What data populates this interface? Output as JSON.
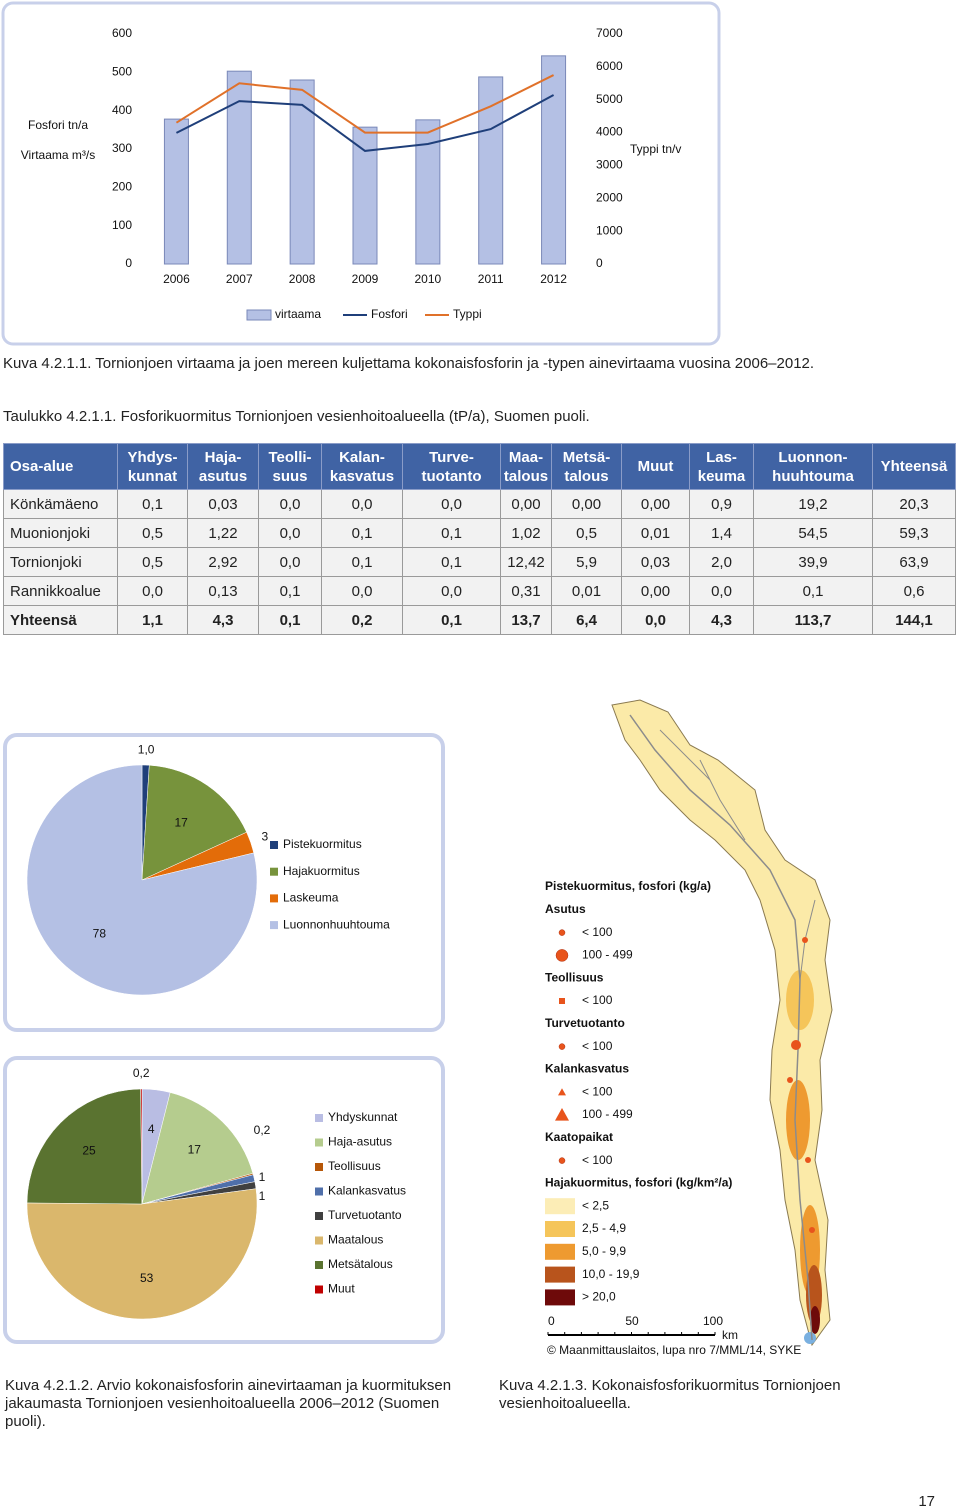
{
  "chart_data": [
    {
      "type": "bar",
      "categories": [
        "2006",
        "2007",
        "2008",
        "2009",
        "2010",
        "2011",
        "2012"
      ],
      "ylabels": [
        "Fosfori tn/a",
        "Virtaama m³/s"
      ],
      "y2label": "Typpi tn/v",
      "ylim": [
        0,
        600
      ],
      "yticks": [
        0,
        100,
        200,
        300,
        400,
        500,
        600
      ],
      "y2lim": [
        0,
        7000
      ],
      "y2ticks": [
        0,
        1000,
        2000,
        3000,
        4000,
        5000,
        6000,
        7000
      ],
      "series": [
        {
          "name": "virtaama",
          "type": "bar",
          "color": "#b4c0e4",
          "values": [
            378,
            503,
            480,
            357,
            376,
            488,
            543
          ]
        },
        {
          "name": "Fosfori",
          "type": "line",
          "color": "#1f3f7a",
          "values": [
            342,
            425,
            415,
            295,
            313,
            352,
            441
          ]
        },
        {
          "name": "Typpi",
          "type": "line",
          "axis": "y2",
          "color": "#e0712a",
          "values": [
            4300,
            5500,
            5300,
            4000,
            4000,
            4800,
            5750
          ]
        }
      ]
    },
    {
      "type": "pie",
      "categories": [
        "Pistekuormitus",
        "Hajakuormitus",
        "Laskeuma",
        "Luonnonhuuhtouma"
      ],
      "values": [
        1.0,
        17,
        3,
        78
      ],
      "value_labels": [
        "1,0",
        "17",
        "3",
        "78"
      ],
      "colors": [
        "#1f3f7a",
        "#77933c",
        "#e36c09",
        "#b4c0e4"
      ]
    },
    {
      "type": "pie",
      "categories": [
        "Yhdyskunnat",
        "Haja-asutus",
        "Teollisuus",
        "Kalankasvatus",
        "Turvetuotanto",
        "Maatalous",
        "Metsätalous",
        "Muut"
      ],
      "values": [
        4,
        17,
        0.2,
        1,
        1,
        53,
        25,
        0.2
      ],
      "value_labels": [
        "4",
        "17",
        "0,2",
        "1",
        "1",
        "53",
        "25",
        "0,2"
      ],
      "colors": [
        "#b9bde3",
        "#b5cc8e",
        "#b65708",
        "#4f6faa",
        "#404040",
        "#dab76c",
        "#5a7330",
        "#c00000"
      ]
    }
  ],
  "captions": {
    "figure1": "Kuva 4.2.1.1. Tornionjoen virtaama ja joen mereen kuljettama kokonaisfosforin ja -typen ainevirtaama vuosina 2006–2012.",
    "table1": "Taulukko 4.2.1.1. Fosforikuormitus Tornionjoen vesienhoitoalueella (tP/a), Suomen puoli.",
    "figure2": "Kuva 4.2.1.2. Arvio kokonaisfosforin ainevirtaaman ja kuormituksen jakaumasta Tornionjoen vesienhoitoalueella 2006–2012 (Suomen puoli).",
    "figure3": "Kuva 4.2.1.3. Kokonaisfosforikuormitus Tornionjoen vesienhoitoalueella."
  },
  "table": {
    "header": [
      "Osa-alue",
      "Yhdys-\nkunnat",
      "Haja-\nasutus",
      "Teolli-\nsuus",
      "Kalan-\nkasvatus",
      "Turve-\ntuotanto",
      "Maa-\ntalous",
      "Metsä-\ntalous",
      "Muut",
      "Las-\nkeuma",
      "Luonnon-\nhuuhtouma",
      "Yhteensä"
    ],
    "rows": [
      [
        "Könkämäeno",
        "0,1",
        "0,03",
        "0,0",
        "0,0",
        "0,0",
        "0,00",
        "0,00",
        "0,00",
        "0,9",
        "19,2",
        "20,3"
      ],
      [
        "Muonionjoki",
        "0,5",
        "1,22",
        "0,0",
        "0,1",
        "0,1",
        "1,02",
        "0,5",
        "0,01",
        "1,4",
        "54,5",
        "59,3"
      ],
      [
        "Tornionjoki",
        "0,5",
        "2,92",
        "0,0",
        "0,1",
        "0,1",
        "12,42",
        "5,9",
        "0,03",
        "2,0",
        "39,9",
        "63,9"
      ],
      [
        "Rannikkoalue",
        "0,0",
        "0,13",
        "0,1",
        "0,0",
        "0,0",
        "0,31",
        "0,01",
        "0,00",
        "0,0",
        "0,1",
        "0,6"
      ],
      [
        "Yhteensä",
        "1,1",
        "4,3",
        "0,1",
        "0,2",
        "0,1",
        "13,7",
        "6,4",
        "0,0",
        "4,3",
        "113,7",
        "144,1"
      ]
    ]
  },
  "map": {
    "legend_title": "Pistekuormitus, fosfori (kg/a)",
    "point_groups": [
      {
        "name": "Asutus",
        "classes": [
          "< 100",
          "100 - 499"
        ]
      },
      {
        "name": "Teollisuus",
        "classes": [
          "< 100"
        ]
      },
      {
        "name": "Turvetuotanto",
        "classes": [
          "< 100"
        ]
      },
      {
        "name": "Kalankasvatus",
        "classes": [
          "< 100",
          "100 - 499"
        ]
      },
      {
        "name": "Kaatopaikat",
        "classes": [
          "< 100"
        ]
      }
    ],
    "area_title": "Hajakuormitus, fosfori (kg/km²/a)",
    "area_classes": [
      "< 2,5",
      "2,5 - 4,9",
      "5,0 - 9,9",
      "10,0 - 19,9",
      "> 20,0"
    ],
    "area_colors": [
      "#fcedb6",
      "#f5c55a",
      "#ee9a30",
      "#b8541c",
      "#6e0a0a"
    ],
    "scale_labels": [
      "0",
      "50",
      "100"
    ],
    "scale_unit": "km",
    "credit": "© Maanmittauslaitos, lupa nro 7/MML/14, SYKE"
  },
  "page_number": "17"
}
